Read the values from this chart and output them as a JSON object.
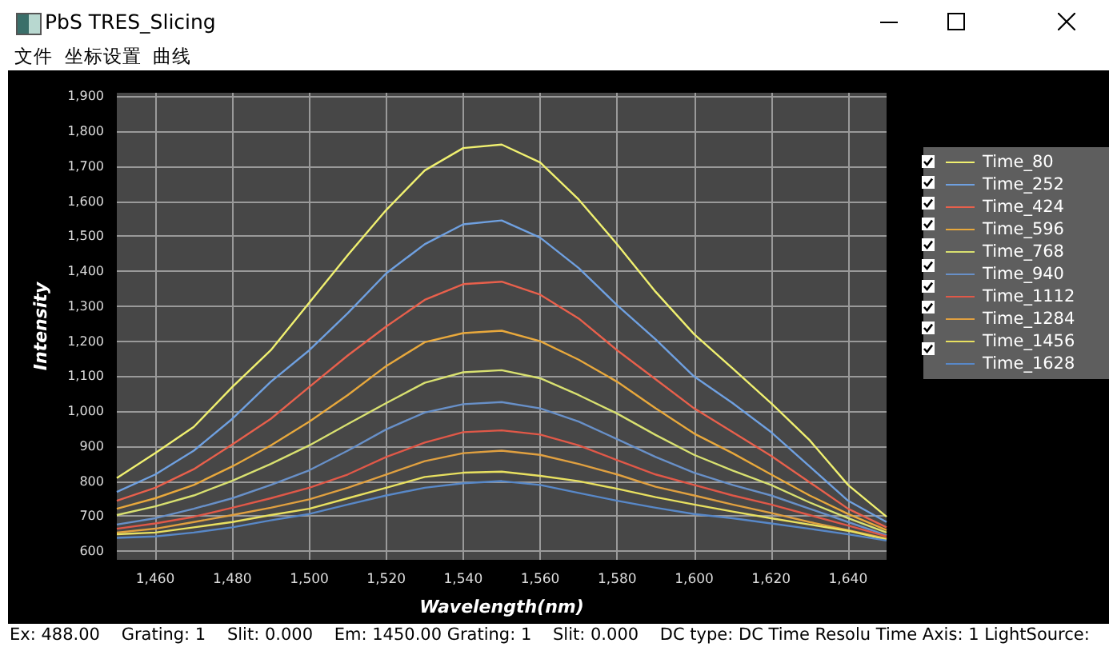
{
  "chart_data": {
    "type": "line",
    "title": "PbS TRES_Slicing",
    "xlabel": "Wavelength(nm)",
    "ylabel": "Intensity",
    "annotations": [
      "文件  坐标设置  曲线",
      "Ex: 488.00    Grating: 1    Slit: 0.000    Em: 1450.00 Grating: 1    Slit: 0.000    DC type: DC Time Resolu Time Axis: 1 LightSource:"
    ],
    "x": [
      1450,
      1460,
      1470,
      1480,
      1490,
      1500,
      1510,
      1520,
      1530,
      1540,
      1550,
      1560,
      1570,
      1580,
      1590,
      1600,
      1610,
      1620,
      1630,
      1640,
      1650
    ],
    "series": [
      {
        "name": "Time_80",
        "color": "#f0f070",
        "values": [
          809,
          880,
          955,
          1069,
          1174,
          1310,
          1446,
          1575,
          1688,
          1752,
          1762,
          1711,
          1605,
          1477,
          1341,
          1220,
          1122,
          1023,
          917,
          789,
          698
        ]
      },
      {
        "name": "Time_252",
        "color": "#6fa0e0",
        "values": [
          769,
          819,
          887,
          978,
          1084,
          1174,
          1280,
          1394,
          1477,
          1534,
          1545,
          1496,
          1409,
          1303,
          1205,
          1099,
          1023,
          940,
          842,
          744,
          683
        ]
      },
      {
        "name": "Time_424",
        "color": "#e8604c",
        "values": [
          744,
          781,
          834,
          905,
          978,
          1069,
          1159,
          1242,
          1318,
          1363,
          1370,
          1333,
          1265,
          1174,
          1091,
          1008,
          940,
          872,
          797,
          721,
          668
        ]
      },
      {
        "name": "Time_596",
        "color": "#e8a83c",
        "values": [
          721,
          751,
          789,
          842,
          902,
          970,
          1046,
          1129,
          1197,
          1223,
          1230,
          1200,
          1147,
          1084,
          1008,
          936,
          880,
          819,
          759,
          706,
          660
        ]
      },
      {
        "name": "Time_768",
        "color": "#d8e070",
        "values": [
          703,
          728,
          759,
          801,
          849,
          902,
          963,
          1023,
          1081,
          1111,
          1117,
          1094,
          1046,
          993,
          932,
          875,
          830,
          789,
          739,
          694,
          653
        ]
      },
      {
        "name": "Time_940",
        "color": "#6890c8",
        "values": [
          676,
          694,
          721,
          751,
          789,
          831,
          887,
          948,
          996,
          1020,
          1026,
          1008,
          970,
          920,
          869,
          824,
          789,
          759,
          721,
          683,
          645
        ]
      },
      {
        "name": "Time_1112",
        "color": "#e05848",
        "values": [
          664,
          679,
          698,
          724,
          751,
          781,
          819,
          869,
          910,
          940,
          945,
          933,
          902,
          860,
          819,
          789,
          759,
          733,
          703,
          673,
          642
        ]
      },
      {
        "name": "Time_1284",
        "color": "#e0a040",
        "values": [
          653,
          664,
          683,
          703,
          724,
          748,
          781,
          819,
          857,
          880,
          887,
          875,
          849,
          819,
          784,
          759,
          733,
          709,
          683,
          660,
          636
        ]
      },
      {
        "name": "Time_1456",
        "color": "#e8e060",
        "values": [
          648,
          653,
          668,
          683,
          703,
          721,
          751,
          781,
          812,
          824,
          827,
          815,
          800,
          778,
          754,
          733,
          713,
          694,
          676,
          658,
          633
        ]
      },
      {
        "name": "Time_1628",
        "color": "#5888c8",
        "values": [
          638,
          642,
          653,
          668,
          688,
          706,
          733,
          759,
          781,
          794,
          800,
          789,
          766,
          744,
          724,
          706,
          694,
          679,
          664,
          648,
          630
        ]
      }
    ],
    "xlim": [
      1450,
      1650
    ],
    "xticks": [
      {
        "value": 1460,
        "label": "1,460"
      },
      {
        "value": 1480,
        "label": "1,480"
      },
      {
        "value": 1500,
        "label": "1,500"
      },
      {
        "value": 1520,
        "label": "1,520"
      },
      {
        "value": 1540,
        "label": "1,540"
      },
      {
        "value": 1560,
        "label": "1,560"
      },
      {
        "value": 1580,
        "label": "1,580"
      },
      {
        "value": 1600,
        "label": "1,600"
      },
      {
        "value": 1620,
        "label": "1,620"
      },
      {
        "value": 1640,
        "label": "1,640"
      }
    ],
    "ylim": [
      575,
      1910
    ],
    "yticks": [
      600,
      700,
      800,
      900,
      {
        "value": 1000,
        "label": "1,000"
      },
      {
        "value": 1100,
        "label": "1,100"
      },
      {
        "value": 1200,
        "label": "1,200"
      },
      {
        "value": 1300,
        "label": "1,300"
      },
      {
        "value": 1400,
        "label": "1,400"
      },
      {
        "value": 1500,
        "label": "1,500"
      },
      {
        "value": 1600,
        "label": "1,600"
      },
      {
        "value": 1700,
        "label": "1,700"
      },
      {
        "value": 1800,
        "label": "1,800"
      },
      {
        "value": 1900,
        "label": "1,900"
      }
    ],
    "grid": true,
    "legend": "right",
    "marker": "none",
    "line_style": "solid"
  }
}
